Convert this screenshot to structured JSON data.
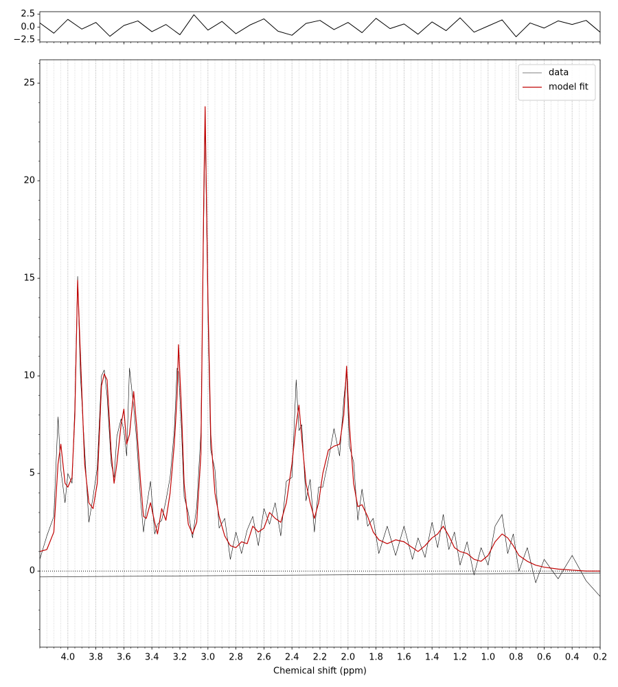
{
  "chart_data": [
    {
      "type": "line",
      "x": [
        4.2,
        4.1,
        4.0,
        3.9,
        3.8,
        3.7,
        3.6,
        3.5,
        3.4,
        3.3,
        3.2,
        3.1,
        3.0,
        2.9,
        2.8,
        2.7,
        2.6,
        2.5,
        2.4,
        2.3,
        2.2,
        2.1,
        2.0,
        1.9,
        1.8,
        1.7,
        1.6,
        1.5,
        1.4,
        1.3,
        1.2,
        1.1,
        1.0,
        0.9,
        0.8,
        0.7,
        0.6,
        0.5,
        0.4,
        0.3,
        0.2
      ],
      "series": [
        {
          "color": "#000000",
          "values": [
            0.8,
            -1.2,
            1.5,
            -0.4,
            0.9,
            -1.8,
            0.3,
            1.2,
            -0.9,
            0.5,
            -1.5,
            2.4,
            -0.6,
            1.1,
            -1.3,
            0.4,
            1.6,
            -0.8,
            -1.6,
            0.7,
            1.3,
            -0.5,
            0.9,
            -1.1,
            1.7,
            -0.3,
            0.6,
            -1.4,
            1.0,
            -0.7,
            1.8,
            -1.0,
            0.2,
            1.4,
            -1.9,
            0.8,
            -0.2,
            1.2,
            0.5,
            1.3,
            -1.0
          ]
        }
      ],
      "xlim": [
        4.2,
        0.2
      ],
      "ylim": [
        -2.9,
        3.0
      ],
      "yticks": [
        {
          "value": -2.5,
          "label": "−2.5"
        },
        {
          "value": 0,
          "label": "0.0"
        },
        2.5
      ]
    },
    {
      "type": "line",
      "xlabel": "Chemical shift (ppm)",
      "x": [
        4.2,
        4.15,
        4.1,
        4.07,
        4.05,
        4.02,
        4.0,
        3.97,
        3.95,
        3.93,
        3.91,
        3.88,
        3.85,
        3.82,
        3.79,
        3.76,
        3.74,
        3.72,
        3.69,
        3.67,
        3.65,
        3.62,
        3.6,
        3.58,
        3.56,
        3.53,
        3.51,
        3.48,
        3.46,
        3.44,
        3.41,
        3.38,
        3.36,
        3.33,
        3.3,
        3.27,
        3.24,
        3.22,
        3.21,
        3.19,
        3.17,
        3.14,
        3.11,
        3.08,
        3.05,
        3.03,
        3.02,
        3.0,
        2.98,
        2.95,
        2.92,
        2.88,
        2.84,
        2.8,
        2.76,
        2.72,
        2.68,
        2.64,
        2.6,
        2.56,
        2.52,
        2.48,
        2.44,
        2.4,
        2.37,
        2.35,
        2.33,
        2.3,
        2.27,
        2.24,
        2.21,
        2.18,
        2.14,
        2.1,
        2.06,
        2.03,
        2.01,
        1.99,
        1.96,
        1.93,
        1.9,
        1.86,
        1.82,
        1.78,
        1.72,
        1.66,
        1.6,
        1.54,
        1.5,
        1.45,
        1.4,
        1.36,
        1.32,
        1.28,
        1.24,
        1.2,
        1.15,
        1.1,
        1.05,
        1.0,
        0.95,
        0.9,
        0.86,
        0.82,
        0.78,
        0.72,
        0.66,
        0.6,
        0.5,
        0.4,
        0.3,
        0.2
      ],
      "series": [
        {
          "name": "data",
          "color": "#000000",
          "width": 0.6,
          "values": [
            0.6,
            1.8,
            2.8,
            7.9,
            5.2,
            3.5,
            5.0,
            4.5,
            8.5,
            15.1,
            10,
            6.2,
            2.5,
            3.8,
            5.3,
            10,
            10.3,
            9.0,
            5.5,
            4.8,
            6.9,
            7.8,
            7.2,
            5.9,
            10.4,
            8.4,
            6.8,
            3.6,
            2.0,
            3.2,
            4.6,
            1.9,
            2.4,
            2.6,
            3.6,
            4.8,
            7.2,
            10.4,
            10.2,
            7.5,
            3.8,
            3.0,
            1.7,
            3.3,
            7.1,
            18,
            23,
            13.2,
            6.2,
            5.2,
            2.2,
            2.7,
            0.6,
            2.0,
            0.9,
            2.1,
            2.8,
            1.3,
            3.2,
            2.4,
            3.5,
            1.8,
            4.6,
            4.8,
            9.8,
            7.2,
            7.5,
            3.6,
            4.7,
            2.0,
            4.3,
            4.3,
            5.7,
            7.3,
            5.9,
            8.8,
            10.2,
            6.4,
            5.6,
            2.6,
            4.2,
            2.3,
            2.7,
            0.9,
            2.3,
            0.8,
            2.3,
            0.6,
            1.7,
            0.7,
            2.5,
            1.2,
            2.9,
            1.1,
            2.0,
            0.3,
            1.5,
            -0.2,
            1.2,
            0.3,
            2.3,
            2.9,
            0.9,
            1.9,
            0.0,
            1.2,
            -0.6,
            0.6,
            -0.4,
            0.8,
            -0.5,
            -1.3
          ]
        },
        {
          "name": "model fit",
          "color": "#c00000",
          "width": 1.2,
          "values": [
            1.0,
            1.1,
            2.0,
            5.5,
            6.5,
            4.5,
            4.3,
            4.8,
            8,
            14.9,
            11,
            5.5,
            3.5,
            3.2,
            4.5,
            9.5,
            10.1,
            9.8,
            6,
            4.5,
            5.5,
            7.5,
            8.3,
            6.5,
            7.0,
            9.2,
            7.5,
            4.5,
            2.8,
            2.7,
            3.5,
            2.5,
            1.9,
            3.2,
            2.6,
            4.0,
            6.5,
            9,
            11.6,
            8.5,
            4.5,
            2.4,
            1.9,
            2.5,
            6,
            19,
            23.8,
            14,
            7,
            4,
            2.8,
            1.8,
            1.3,
            1.2,
            1.5,
            1.4,
            2.3,
            2.0,
            2.2,
            3.0,
            2.7,
            2.5,
            3.5,
            5.5,
            7.5,
            8.5,
            6.8,
            4.5,
            3.5,
            2.7,
            3.5,
            5.0,
            6.2,
            6.4,
            6.5,
            8,
            10.5,
            7.5,
            4.5,
            3.3,
            3.4,
            2.8,
            2.0,
            1.6,
            1.4,
            1.6,
            1.5,
            1.2,
            1.0,
            1.3,
            1.7,
            1.9,
            2.3,
            1.8,
            1.2,
            1.0,
            0.9,
            0.6,
            0.5,
            0.8,
            1.5,
            1.9,
            1.7,
            1.3,
            0.8,
            0.5,
            0.3,
            0.2,
            0.1,
            0.05,
            0.0,
            0.0
          ]
        },
        {
          "color": "#333333",
          "width": 0.8,
          "x": [
            4.2,
            0.2
          ],
          "values": [
            -0.3,
            -0.1
          ]
        }
      ],
      "zero_line": 0,
      "xlim": [
        4.2,
        0.2
      ],
      "ylim": [
        -3.9,
        26.2
      ],
      "xticks": [
        {
          "value": 4,
          "label": "4.0"
        },
        3.8,
        3.6,
        3.4,
        3.2,
        {
          "value": 3,
          "label": "3.0"
        },
        2.8,
        2.6,
        2.4,
        2.2,
        {
          "value": 2,
          "label": "2.0"
        },
        1.8,
        1.6,
        1.4,
        1.2,
        {
          "value": 1,
          "label": "1.0"
        },
        0.8,
        0.6,
        0.4,
        0.2
      ],
      "x_minor_step": 0.05,
      "yticks": [
        0,
        5,
        10,
        15,
        20,
        25
      ],
      "y_minor_step": 1,
      "grid": true,
      "legend": "upper-right"
    }
  ]
}
